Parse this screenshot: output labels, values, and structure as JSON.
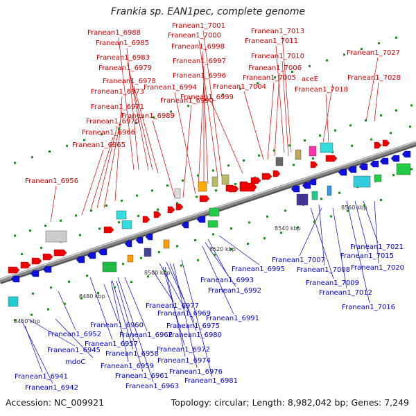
{
  "title": "Frankia sp. EAN1pec, complete genome",
  "footer": {
    "accession": "Accession: NC_009921",
    "summary": "Topology: circular; Length: 8,982,042 bp; Genes: 7,249"
  },
  "colors": {
    "forward_label": "#cc0000",
    "reverse_label": "#0000cc",
    "forward_gene": "#ee0000",
    "reverse_gene": "#1010dd",
    "backbone": "#888888",
    "tick": "#228822"
  },
  "scale_labels": [
    "8460 kbp",
    "8480 kbp",
    "8500 kbp",
    "8520 kbp",
    "8540 kbp",
    "8560 kbp"
  ],
  "forward_genes": [
    "Franean1_6988",
    "Franean1_6985",
    "Franean1_6983",
    "Franean1_6979",
    "Franean1_6978",
    "Franean1_6973",
    "Franean1_6971",
    "Franean1_6970",
    "Franean1_6966",
    "Franean1_6965",
    "Franean1_6956",
    "Franean1_7001",
    "Franean1_7000",
    "Franean1_6998",
    "Franean1_6997",
    "Franean1_6996",
    "Franean1_6994",
    "Franean1_6990",
    "Franean1_6989",
    "Franean1_6999",
    "Franean1_7013",
    "Franean1_7011",
    "Franean1_7010",
    "Franean1_7006",
    "Franean1_7005",
    "Franean1_7004",
    "aceE",
    "Franean1_7018",
    "Franean1_7027",
    "Franean1_7028"
  ],
  "reverse_genes": [
    "Franean1_7007",
    "Franean1_6995",
    "Franean1_6993",
    "Franean1_6992",
    "Franean1_6991",
    "Franean1_7008",
    "Franean1_7009",
    "Franean1_7012",
    "Franean1_7016",
    "Franean1_7021",
    "Franean1_7015",
    "Franean1_7020",
    "Franean1_6977",
    "Franean1_6969",
    "Franean1_6975",
    "Franean1_6960",
    "Franean1_6962",
    "Franean1_6980",
    "Franean1_6952",
    "Franean1_6957",
    "Franean1_6972",
    "Franean1_6945",
    "Franean1_6958",
    "Franean1_6974",
    "mdoC",
    "Franean1_6959",
    "Franean1_6976",
    "Franean1_6961",
    "Franean1_6981",
    "Franean1_6941",
    "Franean1_6963",
    "Franean1_6942"
  ]
}
